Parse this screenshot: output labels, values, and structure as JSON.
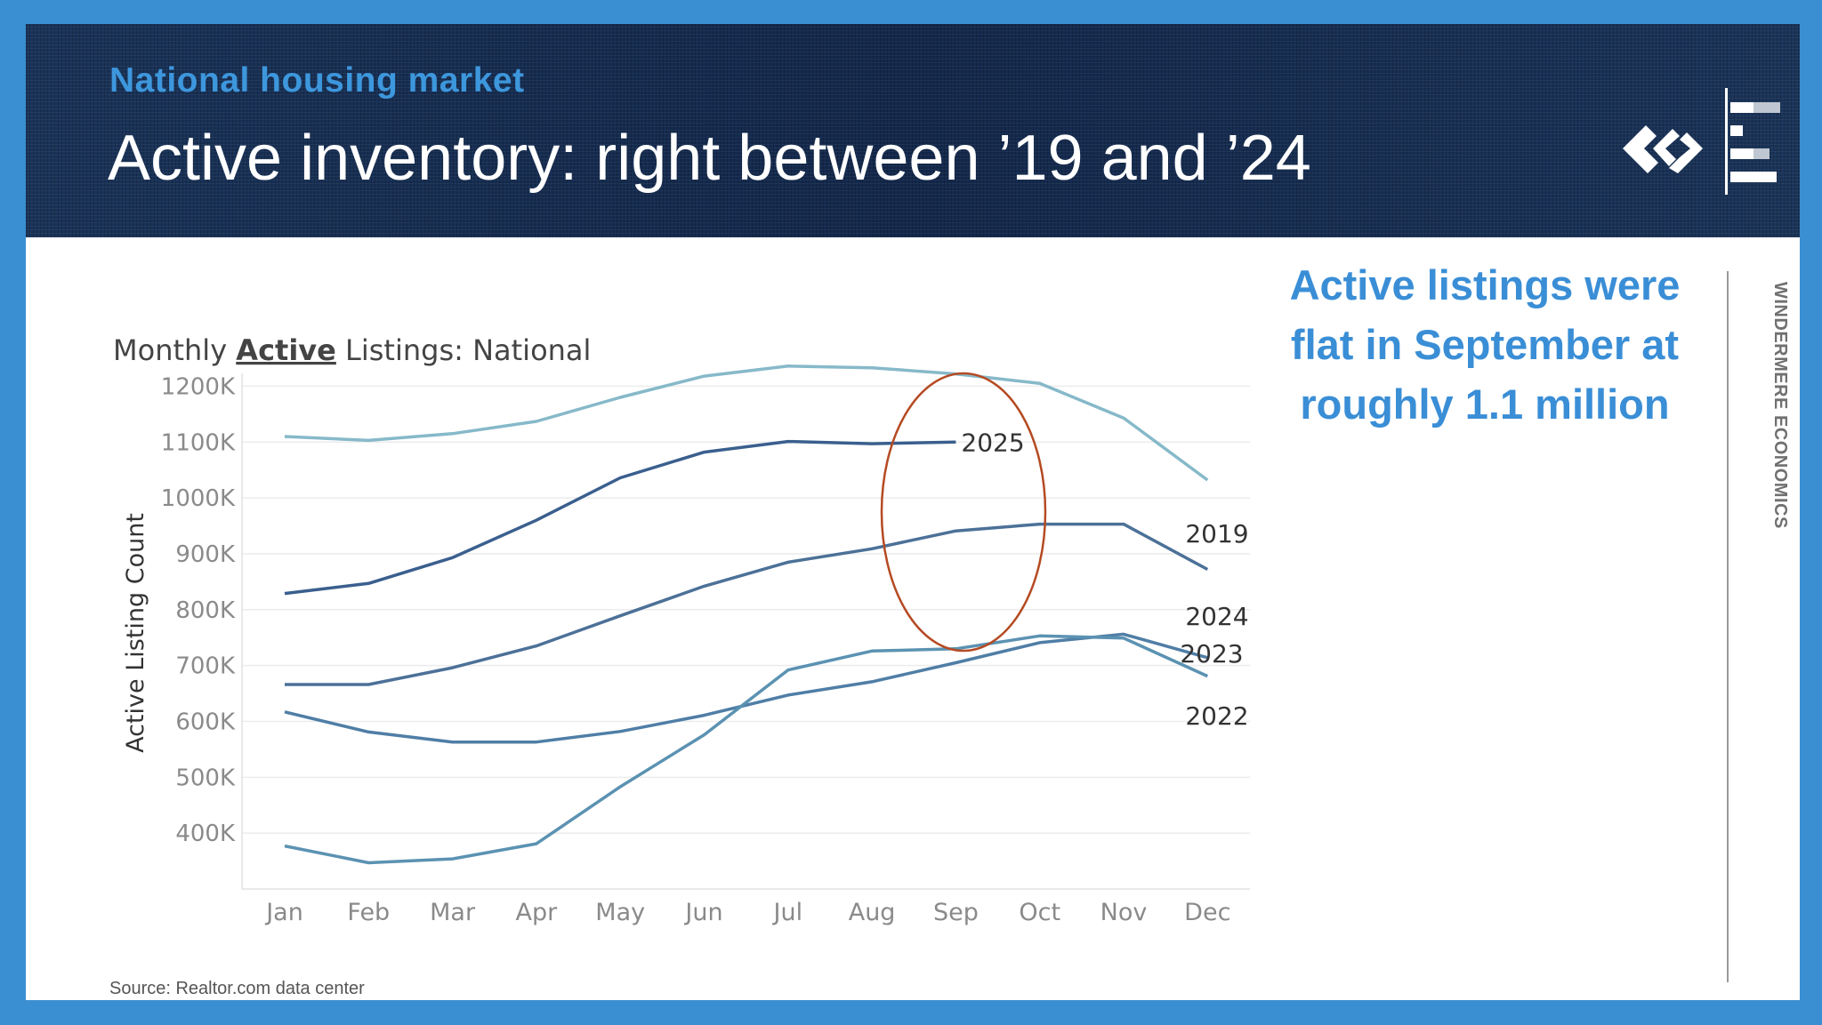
{
  "banner": {
    "kicker": "National housing market",
    "headline": "Active inventory: right between ’19 and ’24"
  },
  "callout": "Active listings were flat in September at roughly 1.1 million",
  "side_label": "WINDERMERE ECONOMICS",
  "source": "Source: Realtor.com data center",
  "colors": {
    "background_frame": "#3a8fd2",
    "kicker": "#3d97dd",
    "callout": "#3a8ed6",
    "highlight_ellipse": "#b54a22"
  },
  "chart_data": {
    "type": "line",
    "title": {
      "prefix": "Monthly ",
      "emphasis": "Active",
      "suffix": " Listings: National"
    },
    "ylabel": "Active Listing Count",
    "xlabel": "",
    "categories": [
      "Jan",
      "Feb",
      "Mar",
      "Apr",
      "May",
      "Jun",
      "Jul",
      "Aug",
      "Sep",
      "Oct",
      "Nov",
      "Dec"
    ],
    "yticks": [
      400000,
      500000,
      600000,
      700000,
      800000,
      900000,
      1000000,
      1100000,
      1200000
    ],
    "ytick_labels": [
      "400K",
      "500K",
      "600K",
      "700K",
      "800K",
      "900K",
      "1000K",
      "1100K",
      "1200K"
    ],
    "ylim": [
      300000,
      1250000
    ],
    "grid": "horizontal",
    "series": [
      {
        "name": "2019",
        "color": "#86b9c9",
        "values": [
          1110000,
          1103000,
          1115000,
          1137000,
          1180000,
          1218000,
          1236000,
          1233000,
          1222000,
          1205000,
          1143000,
          1032000
        ]
      },
      {
        "name": "2025",
        "color": "#3a5f8e",
        "values": [
          829000,
          847000,
          893000,
          960000,
          1036000,
          1082000,
          1101000,
          1097000,
          1100000,
          null,
          null,
          null
        ]
      },
      {
        "name": "2024",
        "color": "#4c7198",
        "values": [
          666000,
          666000,
          696000,
          735000,
          789000,
          842000,
          885000,
          909000,
          941000,
          953000,
          953000,
          872000
        ]
      },
      {
        "name": "2023",
        "color": "#4f7ea6",
        "values": [
          617000,
          581000,
          563000,
          563000,
          582000,
          611000,
          647000,
          671000,
          705000,
          741000,
          756000,
          714000
        ]
      },
      {
        "name": "2022",
        "color": "#5b92b2",
        "values": [
          377000,
          347000,
          354000,
          381000,
          483000,
          576000,
          692000,
          726000,
          730000,
          753000,
          749000,
          681000
        ]
      }
    ],
    "annotation": {
      "shape": "ellipse",
      "around": "Sep 2025"
    }
  }
}
